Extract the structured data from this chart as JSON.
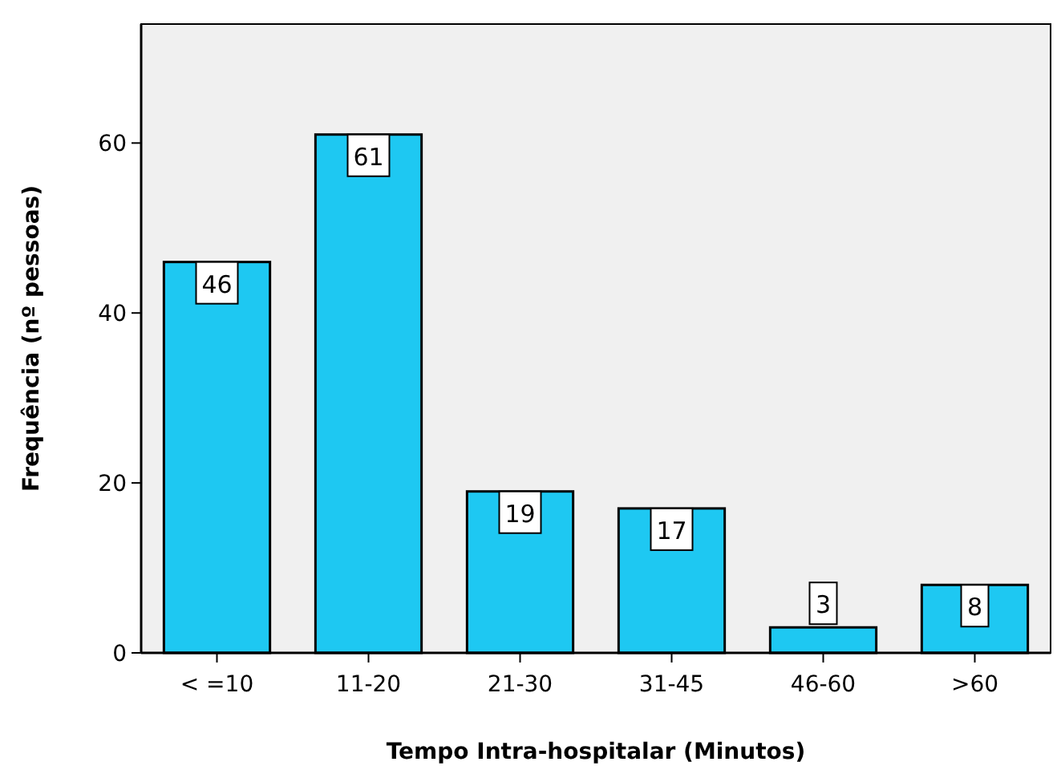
{
  "chart_data": {
    "type": "bar",
    "xlabel": "Tempo Intra-hospitalar (Minutos)",
    "ylabel": "Frequência (nº pessoas)",
    "categories": [
      "< =10",
      "11-20",
      "21-30",
      "31-45",
      "46-60",
      ">60"
    ],
    "values": [
      46,
      61,
      19,
      17,
      3,
      8
    ],
    "color": "#1ec8f2",
    "ylim": [
      0,
      74
    ],
    "yticks": [
      0,
      20,
      40,
      60
    ],
    "grid": false,
    "data_labels": true
  }
}
